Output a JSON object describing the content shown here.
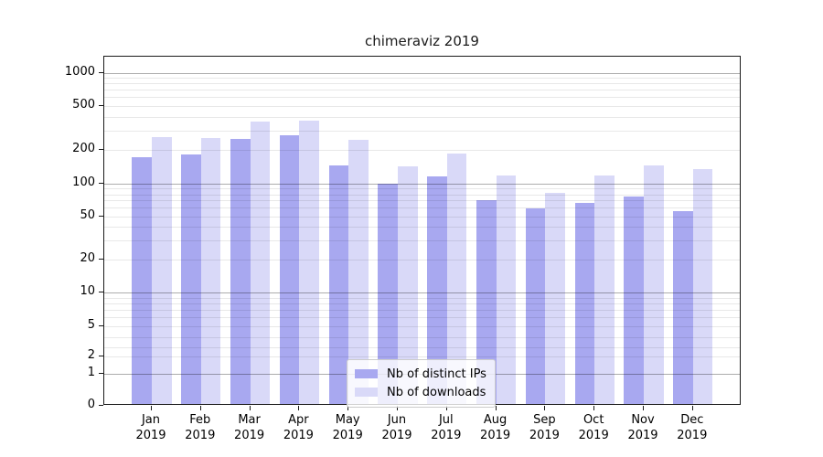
{
  "chart_data": {
    "type": "bar",
    "title": "chimeraviz 2019",
    "categories": [
      "Jan 2019",
      "Feb 2019",
      "Mar 2019",
      "Apr 2019",
      "May 2019",
      "Jun 2019",
      "Jul 2019",
      "Aug 2019",
      "Sep 2019",
      "Oct 2019",
      "Nov 2019",
      "Dec 2019"
    ],
    "series": [
      {
        "name": "Nb of distinct IPs",
        "color": "#a8a8f0",
        "values": [
          167,
          177,
          245,
          265,
          141,
          96,
          113,
          68,
          57,
          64,
          74,
          54
        ]
      },
      {
        "name": "Nb of downloads",
        "color": "#d9d9f8",
        "values": [
          253,
          250,
          352,
          359,
          240,
          138,
          179,
          114,
          80,
          115,
          142,
          131
        ]
      }
    ],
    "yscale": "symlog",
    "y_ticks": [
      0,
      1,
      2,
      5,
      10,
      20,
      50,
      100,
      200,
      500,
      1000
    ],
    "ylim": [
      0,
      1450
    ],
    "grid": "both",
    "legend_position": "lower center"
  },
  "colors": {
    "bar_distinct_ips": "#a8a8f0",
    "bar_downloads": "#d9d9f8",
    "grid_major": "#adadad",
    "grid_minor": "#e8e8e8",
    "spine": "#1a1a1a"
  }
}
